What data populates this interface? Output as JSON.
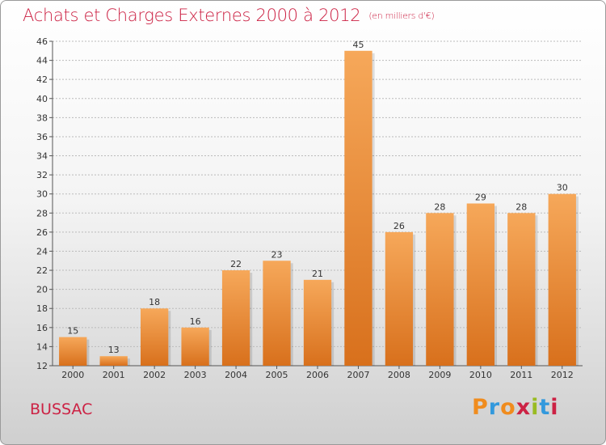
{
  "title": "Achats et Charges Externes 2000 à 2012",
  "subtitle": "(en milliers d'€)",
  "commune": "BUSSAC",
  "logo": {
    "letters": [
      "P",
      "r",
      "o",
      "x",
      "i",
      "t",
      "i"
    ],
    "colors": [
      "#f08c1e",
      "#3399dd",
      "#f08c1e",
      "#cc2244",
      "#99bb22",
      "#3399dd",
      "#cc2244"
    ]
  },
  "colors": {
    "title": "#cc2244",
    "bar_top": "#f6a85a",
    "bar_bottom": "#d8701c",
    "grid": "#bbbbbb"
  },
  "chart_data": {
    "type": "bar",
    "categories": [
      "2000",
      "2001",
      "2002",
      "2003",
      "2004",
      "2005",
      "2006",
      "2007",
      "2008",
      "2009",
      "2010",
      "2011",
      "2012"
    ],
    "values": [
      15,
      13,
      18,
      16,
      22,
      23,
      21,
      45,
      26,
      28,
      29,
      28,
      30
    ],
    "ylim": [
      12,
      46
    ],
    "yticks": [
      12,
      14,
      16,
      18,
      20,
      22,
      24,
      26,
      28,
      30,
      32,
      34,
      36,
      38,
      40,
      42,
      44,
      46
    ],
    "grid": true,
    "legend": "none"
  }
}
